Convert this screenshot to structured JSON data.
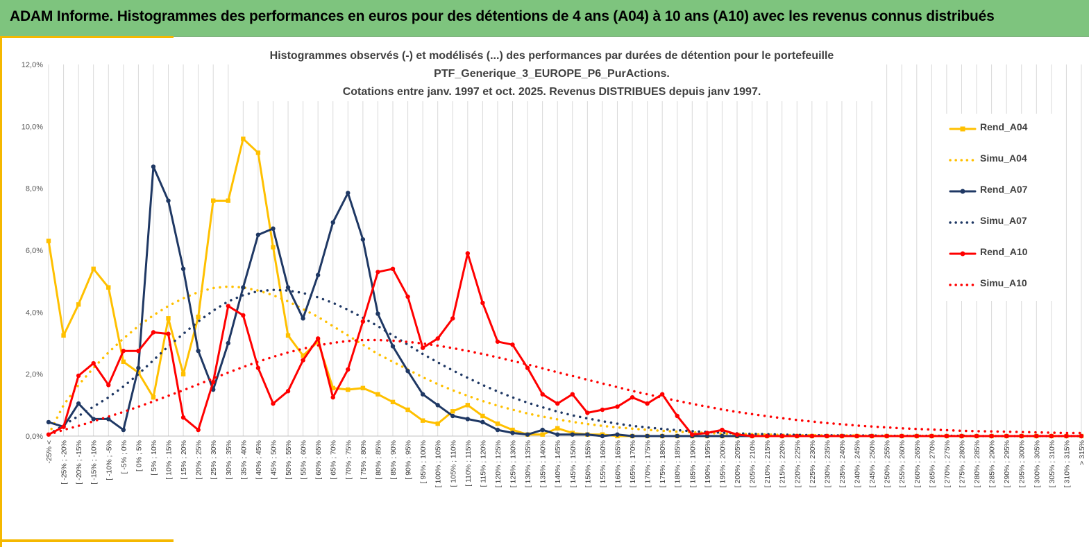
{
  "banner": {
    "title": "ADAM Informe. Histogrammes des performances en euros pour des détentions de 4 ans (A04) à 10 ans (A10) avec les revenus connus distribués"
  },
  "colors": {
    "banner_bg": "#7ec47e",
    "accent": "#f5b800",
    "A04": "#ffc000",
    "A07": "#1f3864",
    "A10": "#ff0000",
    "grid": "#d9d9d9"
  },
  "chart_data": {
    "type": "line",
    "title_lines": [
      "Histogrammes observés (-) et modélisés (...) des performances par durées de détention pour le portefeuille",
      "PTF_Generique_3_EUROPE_P6_PurActions.",
      "Cotations entre janv. 1997 et oct. 2025. Revenus DISTRIBUES depuis janv 1997."
    ],
    "xlabel": "",
    "ylabel": "",
    "ylim": [
      0,
      12
    ],
    "yticks": [
      "0,0%",
      "2,0%",
      "4,0%",
      "6,0%",
      "8,0%",
      "10,0%",
      "12,0%"
    ],
    "grid": "vertical",
    "legend_position": "right",
    "categories": [
      "-25% <",
      "[ -25% ; -20%",
      "[ -20% ; -15%",
      "[ -15% ; -10%",
      "[ -10% ; -5%",
      "[ -5% ; 0%",
      "[ 0% ; 5%",
      "[ 5% ; 10%",
      "[ 10% ; 15%",
      "[ 15% ; 20%",
      "[ 20% ; 25%",
      "[ 25% ; 30%",
      "[ 30% ; 35%",
      "[ 35% ; 40%",
      "[ 40% ; 45%",
      "[ 45% ; 50%",
      "[ 50% ; 55%",
      "[ 55% ; 60%",
      "[ 60% ; 65%",
      "[ 65% ; 70%",
      "[ 70% ; 75%",
      "[ 75% ; 80%",
      "[ 80% ; 85%",
      "[ 85% ; 90%",
      "[ 90% ; 95%",
      "[ 95% ; 100%",
      "[ 100% ; 105%",
      "[ 105% ; 110%",
      "[ 110% ; 115%",
      "[ 115% ; 120%",
      "[ 120% ; 125%",
      "[ 125% ; 130%",
      "[ 130% ; 135%",
      "[ 135% ; 140%",
      "[ 140% ; 145%",
      "[ 145% ; 150%",
      "[ 150% ; 155%",
      "[ 155% ; 160%",
      "[ 160% ; 165%",
      "[ 165% ; 170%",
      "[ 170% ; 175%",
      "[ 175% ; 180%",
      "[ 180% ; 185%",
      "[ 185% ; 190%",
      "[ 190% ; 195%",
      "[ 195% ; 200%",
      "[ 200% ; 205%",
      "[ 205% ; 210%",
      "[ 210% ; 215%",
      "[ 215% ; 220%",
      "[ 220% ; 225%",
      "[ 225% ; 230%",
      "[ 230% ; 235%",
      "[ 235% ; 240%",
      "[ 240% ; 245%",
      "[ 245% ; 250%",
      "[ 250% ; 255%",
      "[ 255% ; 260%",
      "[ 260% ; 265%",
      "[ 265% ; 270%",
      "[ 270% ; 275%",
      "[ 275% ; 280%",
      "[ 280% ; 285%",
      "[ 285% ; 290%",
      "[ 290% ; 295%",
      "[ 295% ; 300%",
      "[ 300% ; 305%",
      "[ 305% ; 310%",
      "[ 310% ; 315%",
      "> 315%"
    ],
    "series": [
      {
        "name": "Rend_A04",
        "style": "solid",
        "marker": "square",
        "color": "#ffc000",
        "values": [
          6.3,
          3.25,
          4.25,
          5.4,
          4.8,
          2.4,
          2.05,
          1.25,
          3.8,
          2.0,
          3.85,
          7.6,
          7.6,
          9.6,
          9.15,
          6.1,
          3.25,
          2.6,
          3.05,
          1.55,
          1.5,
          1.55,
          1.35,
          1.1,
          0.85,
          0.5,
          0.4,
          0.8,
          1.0,
          0.65,
          0.4,
          0.2,
          0.05,
          0.05,
          0.25,
          0.1,
          0.05,
          0.05,
          0.0,
          0.0,
          0.0,
          0.0,
          0.0,
          0.0,
          0.0,
          0.0,
          0.0,
          0.0,
          0.0,
          0.0,
          0.0,
          0.0,
          0.0,
          0.0,
          0.0,
          0.0,
          0.0,
          0.0,
          0.0,
          0.0,
          0.0,
          0.0,
          0.0,
          0.0,
          0.0,
          0.0,
          0.0,
          0.0,
          0.0,
          0.0
        ]
      },
      {
        "name": "Simu_A04",
        "style": "dotted",
        "marker": "none",
        "color": "#ffc000",
        "values": [
          0.05,
          1.0,
          1.65,
          2.2,
          2.7,
          3.15,
          3.55,
          3.9,
          4.2,
          4.45,
          4.65,
          4.78,
          4.83,
          4.8,
          4.7,
          4.55,
          4.35,
          4.1,
          3.85,
          3.55,
          3.25,
          2.95,
          2.65,
          2.4,
          2.15,
          1.9,
          1.68,
          1.48,
          1.3,
          1.13,
          0.98,
          0.85,
          0.73,
          0.63,
          0.54,
          0.46,
          0.39,
          0.33,
          0.28,
          0.24,
          0.2,
          0.17,
          0.14,
          0.12,
          0.1,
          0.08,
          0.07,
          0.06,
          0.05,
          0.04,
          0.03,
          0.03,
          0.02,
          0.02,
          0.02,
          0.01,
          0.01,
          0.01,
          0.01,
          0.01,
          0.01,
          0.0,
          0.0,
          0.0,
          0.0,
          0.0,
          0.0,
          0.0,
          0.0,
          0.0
        ]
      },
      {
        "name": "Rend_A07",
        "style": "solid",
        "marker": "circle",
        "color": "#1f3864",
        "values": [
          0.45,
          0.3,
          1.05,
          0.55,
          0.55,
          0.2,
          2.2,
          8.7,
          7.6,
          5.4,
          2.75,
          1.5,
          3.0,
          4.8,
          6.5,
          6.7,
          4.8,
          3.8,
          5.2,
          6.9,
          7.85,
          6.35,
          3.95,
          2.9,
          2.1,
          1.35,
          1.0,
          0.65,
          0.55,
          0.45,
          0.2,
          0.1,
          0.05,
          0.2,
          0.05,
          0.05,
          0.05,
          0.0,
          0.05,
          0.0,
          0.0,
          0.0,
          0.0,
          0.0,
          0.0,
          0.0,
          0.0,
          0.0,
          0.0,
          0.0,
          0.0,
          0.0,
          0.0,
          0.0,
          0.0,
          0.0,
          0.0,
          0.0,
          0.0,
          0.0,
          0.0,
          0.0,
          0.0,
          0.0,
          0.0,
          0.0,
          0.0,
          0.0,
          0.0,
          0.0
        ]
      },
      {
        "name": "Simu_A07",
        "style": "dotted",
        "marker": "none",
        "color": "#1f3864",
        "values": [
          0.05,
          0.35,
          0.65,
          0.95,
          1.25,
          1.6,
          2.0,
          2.45,
          2.9,
          3.3,
          3.7,
          4.05,
          4.35,
          4.55,
          4.68,
          4.72,
          4.7,
          4.62,
          4.48,
          4.3,
          4.08,
          3.82,
          3.55,
          3.25,
          2.95,
          2.65,
          2.38,
          2.12,
          1.88,
          1.65,
          1.44,
          1.25,
          1.08,
          0.93,
          0.79,
          0.67,
          0.57,
          0.48,
          0.4,
          0.33,
          0.28,
          0.23,
          0.19,
          0.16,
          0.13,
          0.11,
          0.09,
          0.07,
          0.06,
          0.05,
          0.04,
          0.03,
          0.03,
          0.02,
          0.02,
          0.02,
          0.01,
          0.01,
          0.01,
          0.01,
          0.01,
          0.01,
          0.0,
          0.0,
          0.0,
          0.0,
          0.0,
          0.0,
          0.0,
          0.0
        ]
      },
      {
        "name": "Rend_A10",
        "style": "solid",
        "marker": "circle",
        "color": "#ff0000",
        "values": [
          0.05,
          0.3,
          1.95,
          2.35,
          1.65,
          2.75,
          2.75,
          3.35,
          3.3,
          0.6,
          0.2,
          1.75,
          4.2,
          3.9,
          2.2,
          1.05,
          1.45,
          2.45,
          3.15,
          1.25,
          2.15,
          3.7,
          5.3,
          5.4,
          4.5,
          2.85,
          3.15,
          3.8,
          5.9,
          4.3,
          3.05,
          2.95,
          2.2,
          1.35,
          1.05,
          1.35,
          0.75,
          0.85,
          0.95,
          1.25,
          1.05,
          1.35,
          0.65,
          0.05,
          0.1,
          0.2,
          0.05,
          0.0,
          0.0,
          0.0,
          0.0,
          0.0,
          0.0,
          0.0,
          0.0,
          0.0,
          0.0,
          0.0,
          0.0,
          0.0,
          0.0,
          0.0,
          0.0,
          0.0,
          0.0,
          0.0,
          0.0,
          0.0,
          0.0,
          0.0
        ]
      },
      {
        "name": "Simu_A10",
        "style": "dotted",
        "marker": "none",
        "color": "#ff0000",
        "values": [
          0.05,
          0.2,
          0.33,
          0.48,
          0.63,
          0.78,
          0.95,
          1.12,
          1.3,
          1.48,
          1.67,
          1.86,
          2.05,
          2.23,
          2.4,
          2.56,
          2.7,
          2.82,
          2.93,
          3.01,
          3.07,
          3.1,
          3.1,
          3.08,
          3.04,
          2.99,
          2.92,
          2.84,
          2.75,
          2.65,
          2.54,
          2.43,
          2.31,
          2.19,
          2.06,
          1.94,
          1.82,
          1.7,
          1.58,
          1.46,
          1.35,
          1.24,
          1.14,
          1.04,
          0.95,
          0.86,
          0.78,
          0.71,
          0.64,
          0.58,
          0.52,
          0.47,
          0.42,
          0.38,
          0.34,
          0.31,
          0.28,
          0.25,
          0.23,
          0.21,
          0.19,
          0.17,
          0.16,
          0.15,
          0.14,
          0.13,
          0.12,
          0.11,
          0.1,
          0.1
        ]
      }
    ]
  }
}
